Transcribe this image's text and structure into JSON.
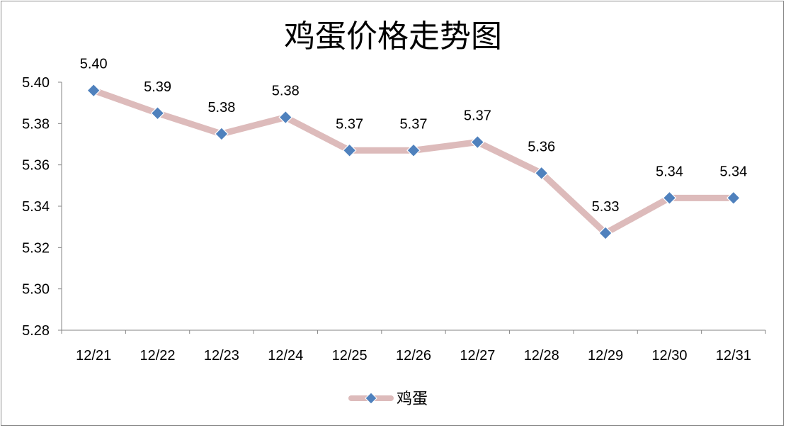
{
  "chart_data": {
    "type": "line",
    "title": "鸡蛋价格走势图",
    "xlabel": "",
    "ylabel": "",
    "categories": [
      "12/21",
      "12/22",
      "12/23",
      "12/24",
      "12/25",
      "12/26",
      "12/27",
      "12/28",
      "12/29",
      "12/30",
      "12/31"
    ],
    "series": [
      {
        "name": "鸡蛋",
        "values": [
          5.396,
          5.385,
          5.375,
          5.383,
          5.367,
          5.367,
          5.371,
          5.356,
          5.327,
          5.344,
          5.344
        ],
        "labels": [
          "5.40",
          "5.39",
          "5.38",
          "5.38",
          "5.37",
          "5.37",
          "5.37",
          "5.36",
          "5.33",
          "5.34",
          "5.34"
        ],
        "line_color": "#DDBBBB",
        "marker_color": "#4F81BD",
        "marker": "diamond"
      }
    ],
    "ylim": [
      5.28,
      5.4
    ],
    "yticks": [
      "5.40",
      "5.38",
      "5.36",
      "5.34",
      "5.32",
      "5.30",
      "5.28"
    ],
    "grid": false,
    "legend": "bottom"
  }
}
